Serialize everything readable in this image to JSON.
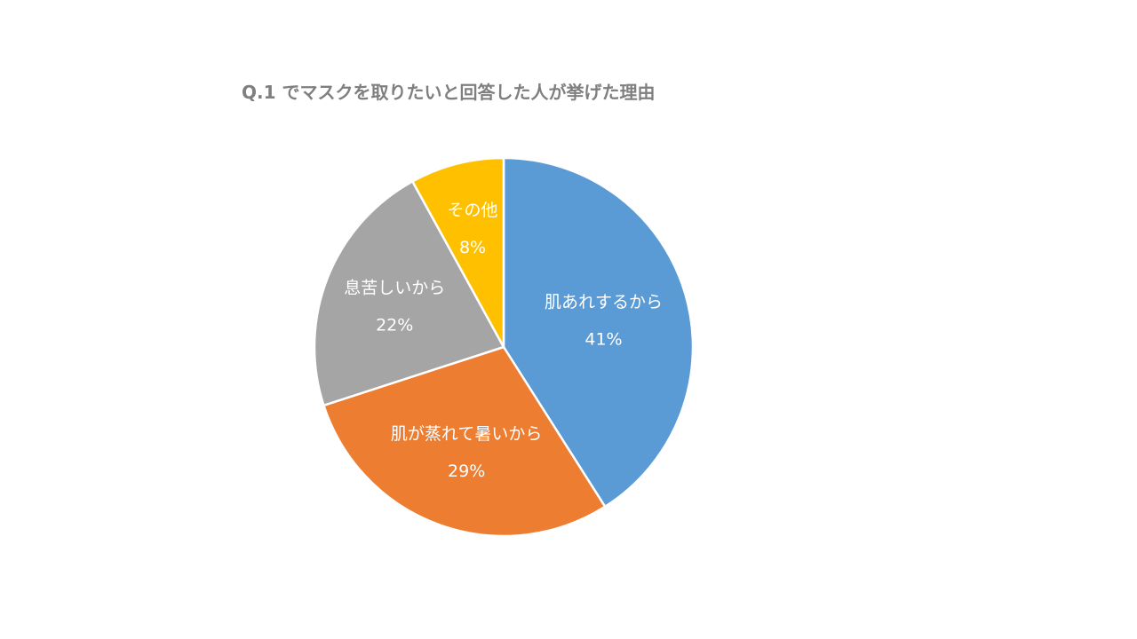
{
  "chart_data": {
    "type": "pie",
    "title": "Q.1 でマスクを取りたいと回答した人が挙げた理由",
    "slices": [
      {
        "label": "肌あれするから",
        "value": 41,
        "value_label": "41%",
        "color": "#5b9bd5"
      },
      {
        "label": "肌が蒸れて暑いから",
        "value": 29,
        "value_label": "29%",
        "color": "#ed7d31"
      },
      {
        "label": "息苦しいから",
        "value": 22,
        "value_label": "22%",
        "color": "#a5a5a5"
      },
      {
        "label": "その他",
        "value": 8,
        "value_label": "8%",
        "color": "#ffc000"
      }
    ],
    "start_angle": "12 o'clock",
    "direction": "clockwise",
    "legend": "none",
    "data_labels": "inside"
  }
}
